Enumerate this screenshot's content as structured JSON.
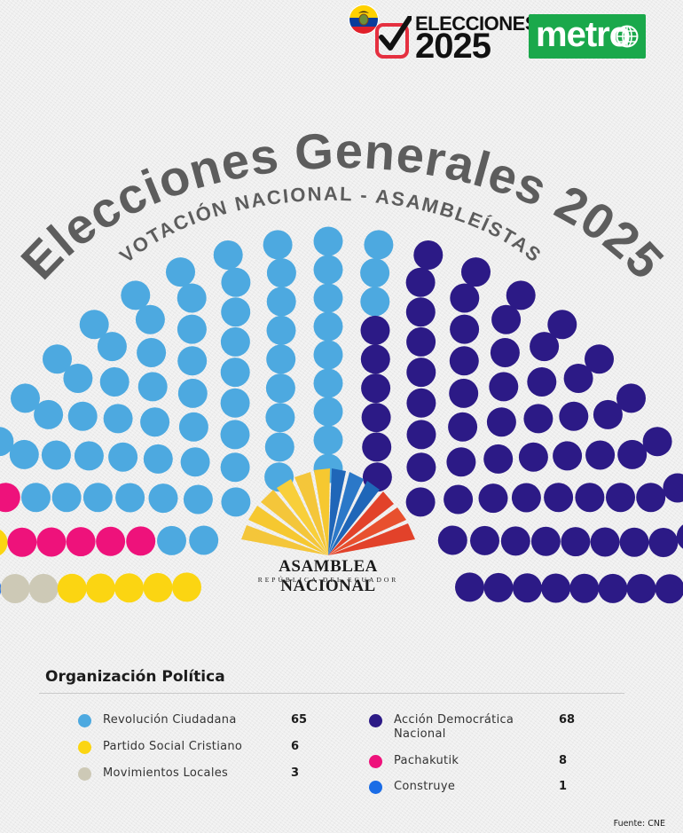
{
  "brand": {
    "elecciones_title": "ELECCIONES",
    "elecciones_year": "2025",
    "metro_label": "metro"
  },
  "header": {
    "title": "Elecciones Generales 2025",
    "subtitle": "VOTACIÓN NACIONAL - ASAMBLEÍSTAS"
  },
  "assembly_logo": {
    "name": "ASAMBLEA NACIONAL",
    "subtitle": "REPÚBLICA DEL ECUADOR"
  },
  "legend": {
    "title": "Organización Política",
    "source": "Fuente: CNE"
  },
  "chart_data": {
    "type": "parliament",
    "title": "Elecciones Generales 2025",
    "subtitle": "VOTACIÓN NACIONAL - ASAMBLEÍSTAS",
    "total_seats": 151,
    "series": [
      {
        "name": "Revolución Ciudadana",
        "value": 65,
        "color": "#4da9e0"
      },
      {
        "name": "Partido Social Cristiano",
        "value": 6,
        "color": "#fbd512"
      },
      {
        "name": "Movimientos Locales",
        "value": 3,
        "color": "#cdc9b6"
      },
      {
        "name": "Acción Democrática Nacional",
        "value": 68,
        "color": "#2c1a86"
      },
      {
        "name": "Pachakutik",
        "value": 8,
        "color": "#ee127b"
      },
      {
        "name": "Construye",
        "value": 1,
        "color": "#1a6ce6"
      }
    ],
    "legend_columns": [
      [
        "Revolución Ciudadana",
        "Partido Social Cristiano",
        "Movimientos Locales"
      ],
      [
        "Acción Democrática Nacional",
        "Pachakutik",
        "Construye"
      ]
    ]
  }
}
